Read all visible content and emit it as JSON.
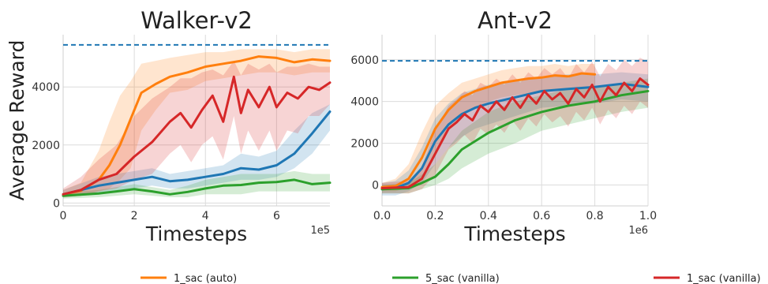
{
  "legend": [
    {
      "label": "1_sac (auto)",
      "color": "#ff7f0e"
    },
    {
      "label": "5_sac (vanilla)",
      "color": "#2ca02c"
    },
    {
      "label": "1_sac (vanilla)",
      "color": "#d62728"
    }
  ],
  "chart_data": [
    {
      "type": "line",
      "title": "Walker-v2",
      "xlabel": "Timesteps",
      "ylabel": "Average Reward",
      "x_exponent": "1e5",
      "xlim": [
        0,
        7.5
      ],
      "ylim": [
        -100,
        5800
      ],
      "xticks": [
        "0",
        "2",
        "4",
        "6"
      ],
      "yticks": [
        "0",
        "2000",
        "4000"
      ],
      "grid": true,
      "reference_line": {
        "y": 5450,
        "style": "dashed",
        "color": "#1f77b4"
      },
      "series": [
        {
          "color": "#ff7f0e",
          "x": [
            0,
            0.5,
            1.0,
            1.3,
            1.6,
            1.9,
            2.2,
            2.6,
            3.0,
            3.5,
            4.0,
            4.5,
            5.0,
            5.5,
            6.0,
            6.5,
            7.0,
            7.5
          ],
          "y": [
            300,
            420,
            800,
            1300,
            2000,
            2900,
            3800,
            4100,
            4350,
            4500,
            4700,
            4800,
            4900,
            5050,
            5000,
            4850,
            4950,
            4900
          ],
          "band": [
            [
              200,
              450
            ],
            [
              250,
              700
            ],
            [
              400,
              1800
            ],
            [
              500,
              2800
            ],
            [
              800,
              3700
            ],
            [
              1200,
              4200
            ],
            [
              2500,
              4800
            ],
            [
              3200,
              4900
            ],
            [
              3800,
              5000
            ],
            [
              3900,
              5100
            ],
            [
              4200,
              5200
            ],
            [
              4300,
              5200
            ],
            [
              4400,
              5300
            ],
            [
              4500,
              5300
            ],
            [
              4500,
              5300
            ],
            [
              4400,
              5200
            ],
            [
              4500,
              5300
            ],
            [
              4500,
              5300
            ]
          ]
        },
        {
          "color": "#1f77b4",
          "x": [
            0,
            1.0,
            1.5,
            2.0,
            2.5,
            3.0,
            3.5,
            4.0,
            4.5,
            5.0,
            5.5,
            6.0,
            6.5,
            7.0,
            7.5
          ],
          "y": [
            300,
            600,
            700,
            800,
            900,
            750,
            800,
            900,
            1000,
            1200,
            1150,
            1300,
            1700,
            2400,
            3150
          ],
          "band": [
            [
              200,
              450
            ],
            [
              300,
              900
            ],
            [
              400,
              1000
            ],
            [
              500,
              1100
            ],
            [
              600,
              1200
            ],
            [
              500,
              1000
            ],
            [
              500,
              1100
            ],
            [
              600,
              1200
            ],
            [
              700,
              1300
            ],
            [
              800,
              1700
            ],
            [
              800,
              1600
            ],
            [
              900,
              1800
            ],
            [
              1200,
              2500
            ],
            [
              1700,
              3100
            ],
            [
              2500,
              3400
            ]
          ]
        },
        {
          "color": "#2ca02c",
          "x": [
            0,
            1.0,
            1.5,
            2.0,
            2.5,
            3.0,
            3.5,
            4.0,
            4.5,
            5.0,
            5.5,
            6.0,
            6.5,
            7.0,
            7.5
          ],
          "y": [
            250,
            330,
            400,
            480,
            400,
            300,
            380,
            500,
            600,
            620,
            700,
            720,
            800,
            650,
            700
          ],
          "band": [
            [
              150,
              350
            ],
            [
              200,
              450
            ],
            [
              250,
              550
            ],
            [
              300,
              650
            ],
            [
              250,
              550
            ],
            [
              200,
              450
            ],
            [
              200,
              600
            ],
            [
              300,
              800
            ],
            [
              300,
              900
            ],
            [
              300,
              1000
            ],
            [
              400,
              1000
            ],
            [
              400,
              1000
            ],
            [
              400,
              1100
            ],
            [
              400,
              1000
            ],
            [
              400,
              1000
            ]
          ]
        },
        {
          "color": "#d62728",
          "x": [
            0,
            0.5,
            1.0,
            1.5,
            2.0,
            2.5,
            3.0,
            3.3,
            3.6,
            3.9,
            4.2,
            4.5,
            4.8,
            5.0,
            5.2,
            5.5,
            5.8,
            6.0,
            6.3,
            6.6,
            6.9,
            7.2,
            7.5
          ],
          "y": [
            300,
            450,
            800,
            1000,
            1600,
            2100,
            2800,
            3100,
            2600,
            3200,
            3700,
            2800,
            4350,
            3100,
            3900,
            3300,
            4000,
            3300,
            3800,
            3600,
            4000,
            3900,
            4150
          ],
          "band": [
            [
              200,
              500
            ],
            [
              250,
              900
            ],
            [
              400,
              1500
            ],
            [
              500,
              2000
            ],
            [
              800,
              3000
            ],
            [
              1000,
              3600
            ],
            [
              1700,
              4000
            ],
            [
              2000,
              4300
            ],
            [
              1400,
              4300
            ],
            [
              2000,
              4500
            ],
            [
              2300,
              4600
            ],
            [
              1500,
              4400
            ],
            [
              3000,
              4900
            ],
            [
              1700,
              4400
            ],
            [
              2500,
              4800
            ],
            [
              1800,
              4600
            ],
            [
              2500,
              4800
            ],
            [
              1800,
              4500
            ],
            [
              2500,
              4700
            ],
            [
              2400,
              4700
            ],
            [
              3000,
              4800
            ],
            [
              3000,
              4700
            ],
            [
              3400,
              4700
            ]
          ]
        }
      ]
    },
    {
      "type": "line",
      "title": "Ant-v2",
      "xlabel": "Timesteps",
      "ylabel": "",
      "x_exponent": "1e6",
      "xlim": [
        0,
        1.0
      ],
      "ylim": [
        -1000,
        7200
      ],
      "xticks": [
        "0.0",
        "0.2",
        "0.4",
        "0.6",
        "0.8",
        "1.0"
      ],
      "yticks": [
        "0",
        "2000",
        "4000",
        "6000"
      ],
      "grid": true,
      "reference_line": {
        "y": 5950,
        "style": "dashed",
        "color": "#1f77b4"
      },
      "series": [
        {
          "color": "#ff7f0e",
          "x": [
            0,
            0.05,
            0.1,
            0.15,
            0.2,
            0.25,
            0.3,
            0.35,
            0.4,
            0.45,
            0.5,
            0.55,
            0.6,
            0.65,
            0.7,
            0.75,
            0.8
          ],
          "y": [
            -100,
            -50,
            300,
            1300,
            2700,
            3600,
            4200,
            4500,
            4700,
            4900,
            5000,
            5100,
            5150,
            5250,
            5200,
            5350,
            5300
          ],
          "band": [
            [
              -300,
              100
            ],
            [
              -300,
              300
            ],
            [
              -100,
              1000
            ],
            [
              300,
              2500
            ],
            [
              1500,
              3800
            ],
            [
              2600,
              4400
            ],
            [
              3300,
              4900
            ],
            [
              3700,
              5100
            ],
            [
              4000,
              5300
            ],
            [
              4200,
              5500
            ],
            [
              4300,
              5600
            ],
            [
              4400,
              5700
            ],
            [
              4500,
              5700
            ],
            [
              4600,
              5800
            ],
            [
              4600,
              5700
            ],
            [
              4700,
              5800
            ],
            [
              4700,
              5800
            ]
          ]
        },
        {
          "color": "#1f77b4",
          "x": [
            0,
            0.05,
            0.1,
            0.15,
            0.2,
            0.25,
            0.3,
            0.35,
            0.4,
            0.5,
            0.6,
            0.7,
            0.8,
            0.9,
            1.0
          ],
          "y": [
            -200,
            -150,
            100,
            800,
            2100,
            2900,
            3400,
            3700,
            3900,
            4200,
            4500,
            4600,
            4700,
            4850,
            4700
          ],
          "band": [
            [
              -500,
              100
            ],
            [
              -500,
              200
            ],
            [
              -300,
              700
            ],
            [
              100,
              1800
            ],
            [
              1000,
              3200
            ],
            [
              1800,
              3900
            ],
            [
              2300,
              4400
            ],
            [
              2700,
              4600
            ],
            [
              2900,
              4800
            ],
            [
              3300,
              5000
            ],
            [
              3700,
              5200
            ],
            [
              3800,
              5300
            ],
            [
              3900,
              5300
            ],
            [
              4100,
              5400
            ],
            [
              4000,
              5300
            ]
          ]
        },
        {
          "color": "#2ca02c",
          "x": [
            0,
            0.1,
            0.15,
            0.2,
            0.25,
            0.3,
            0.4,
            0.5,
            0.6,
            0.7,
            0.8,
            0.9,
            1.0
          ],
          "y": [
            -200,
            -150,
            100,
            400,
            1000,
            1700,
            2500,
            3100,
            3500,
            3800,
            4000,
            4300,
            4500
          ],
          "band": [
            [
              -400,
              0
            ],
            [
              -400,
              100
            ],
            [
              -200,
              500
            ],
            [
              0,
              1000
            ],
            [
              300,
              1800
            ],
            [
              800,
              2600
            ],
            [
              1500,
              3500
            ],
            [
              2000,
              4000
            ],
            [
              2600,
              4300
            ],
            [
              2900,
              4600
            ],
            [
              3200,
              4700
            ],
            [
              3500,
              4900
            ],
            [
              3700,
              5100
            ]
          ]
        },
        {
          "color": "#d62728",
          "x": [
            0,
            0.1,
            0.15,
            0.2,
            0.25,
            0.28,
            0.31,
            0.34,
            0.37,
            0.4,
            0.43,
            0.46,
            0.49,
            0.52,
            0.55,
            0.58,
            0.61,
            0.64,
            0.67,
            0.7,
            0.73,
            0.76,
            0.79,
            0.82,
            0.85,
            0.88,
            0.91,
            0.94,
            0.97,
            1.0
          ],
          "y": [
            -150,
            -100,
            300,
            1500,
            2700,
            3000,
            3400,
            3100,
            3800,
            3500,
            4000,
            3600,
            4200,
            3700,
            4300,
            3900,
            4500,
            4100,
            4400,
            3900,
            4600,
            4200,
            4800,
            4000,
            4700,
            4300,
            4900,
            4500,
            5100,
            4800
          ],
          "band": [
            [
              -400,
              100
            ],
            [
              -400,
              200
            ],
            [
              -200,
              900
            ],
            [
              500,
              2600
            ],
            [
              1700,
              3800
            ],
            [
              2000,
              4100
            ],
            [
              2400,
              4500
            ],
            [
              2000,
              4300
            ],
            [
              2700,
              4900
            ],
            [
              2400,
              4700
            ],
            [
              2900,
              5100
            ],
            [
              2500,
              4800
            ],
            [
              3100,
              5300
            ],
            [
              2600,
              4900
            ],
            [
              3200,
              5400
            ],
            [
              2800,
              5100
            ],
            [
              3400,
              5600
            ],
            [
              3000,
              5300
            ],
            [
              3300,
              5600
            ],
            [
              2800,
              5100
            ],
            [
              3500,
              5800
            ],
            [
              3100,
              5400
            ],
            [
              3700,
              5900
            ],
            [
              2900,
              5200
            ],
            [
              3600,
              5800
            ],
            [
              3200,
              5500
            ],
            [
              3800,
              6000
            ],
            [
              3400,
              5700
            ],
            [
              4000,
              6100
            ],
            [
              3700,
              5900
            ]
          ]
        }
      ]
    }
  ]
}
